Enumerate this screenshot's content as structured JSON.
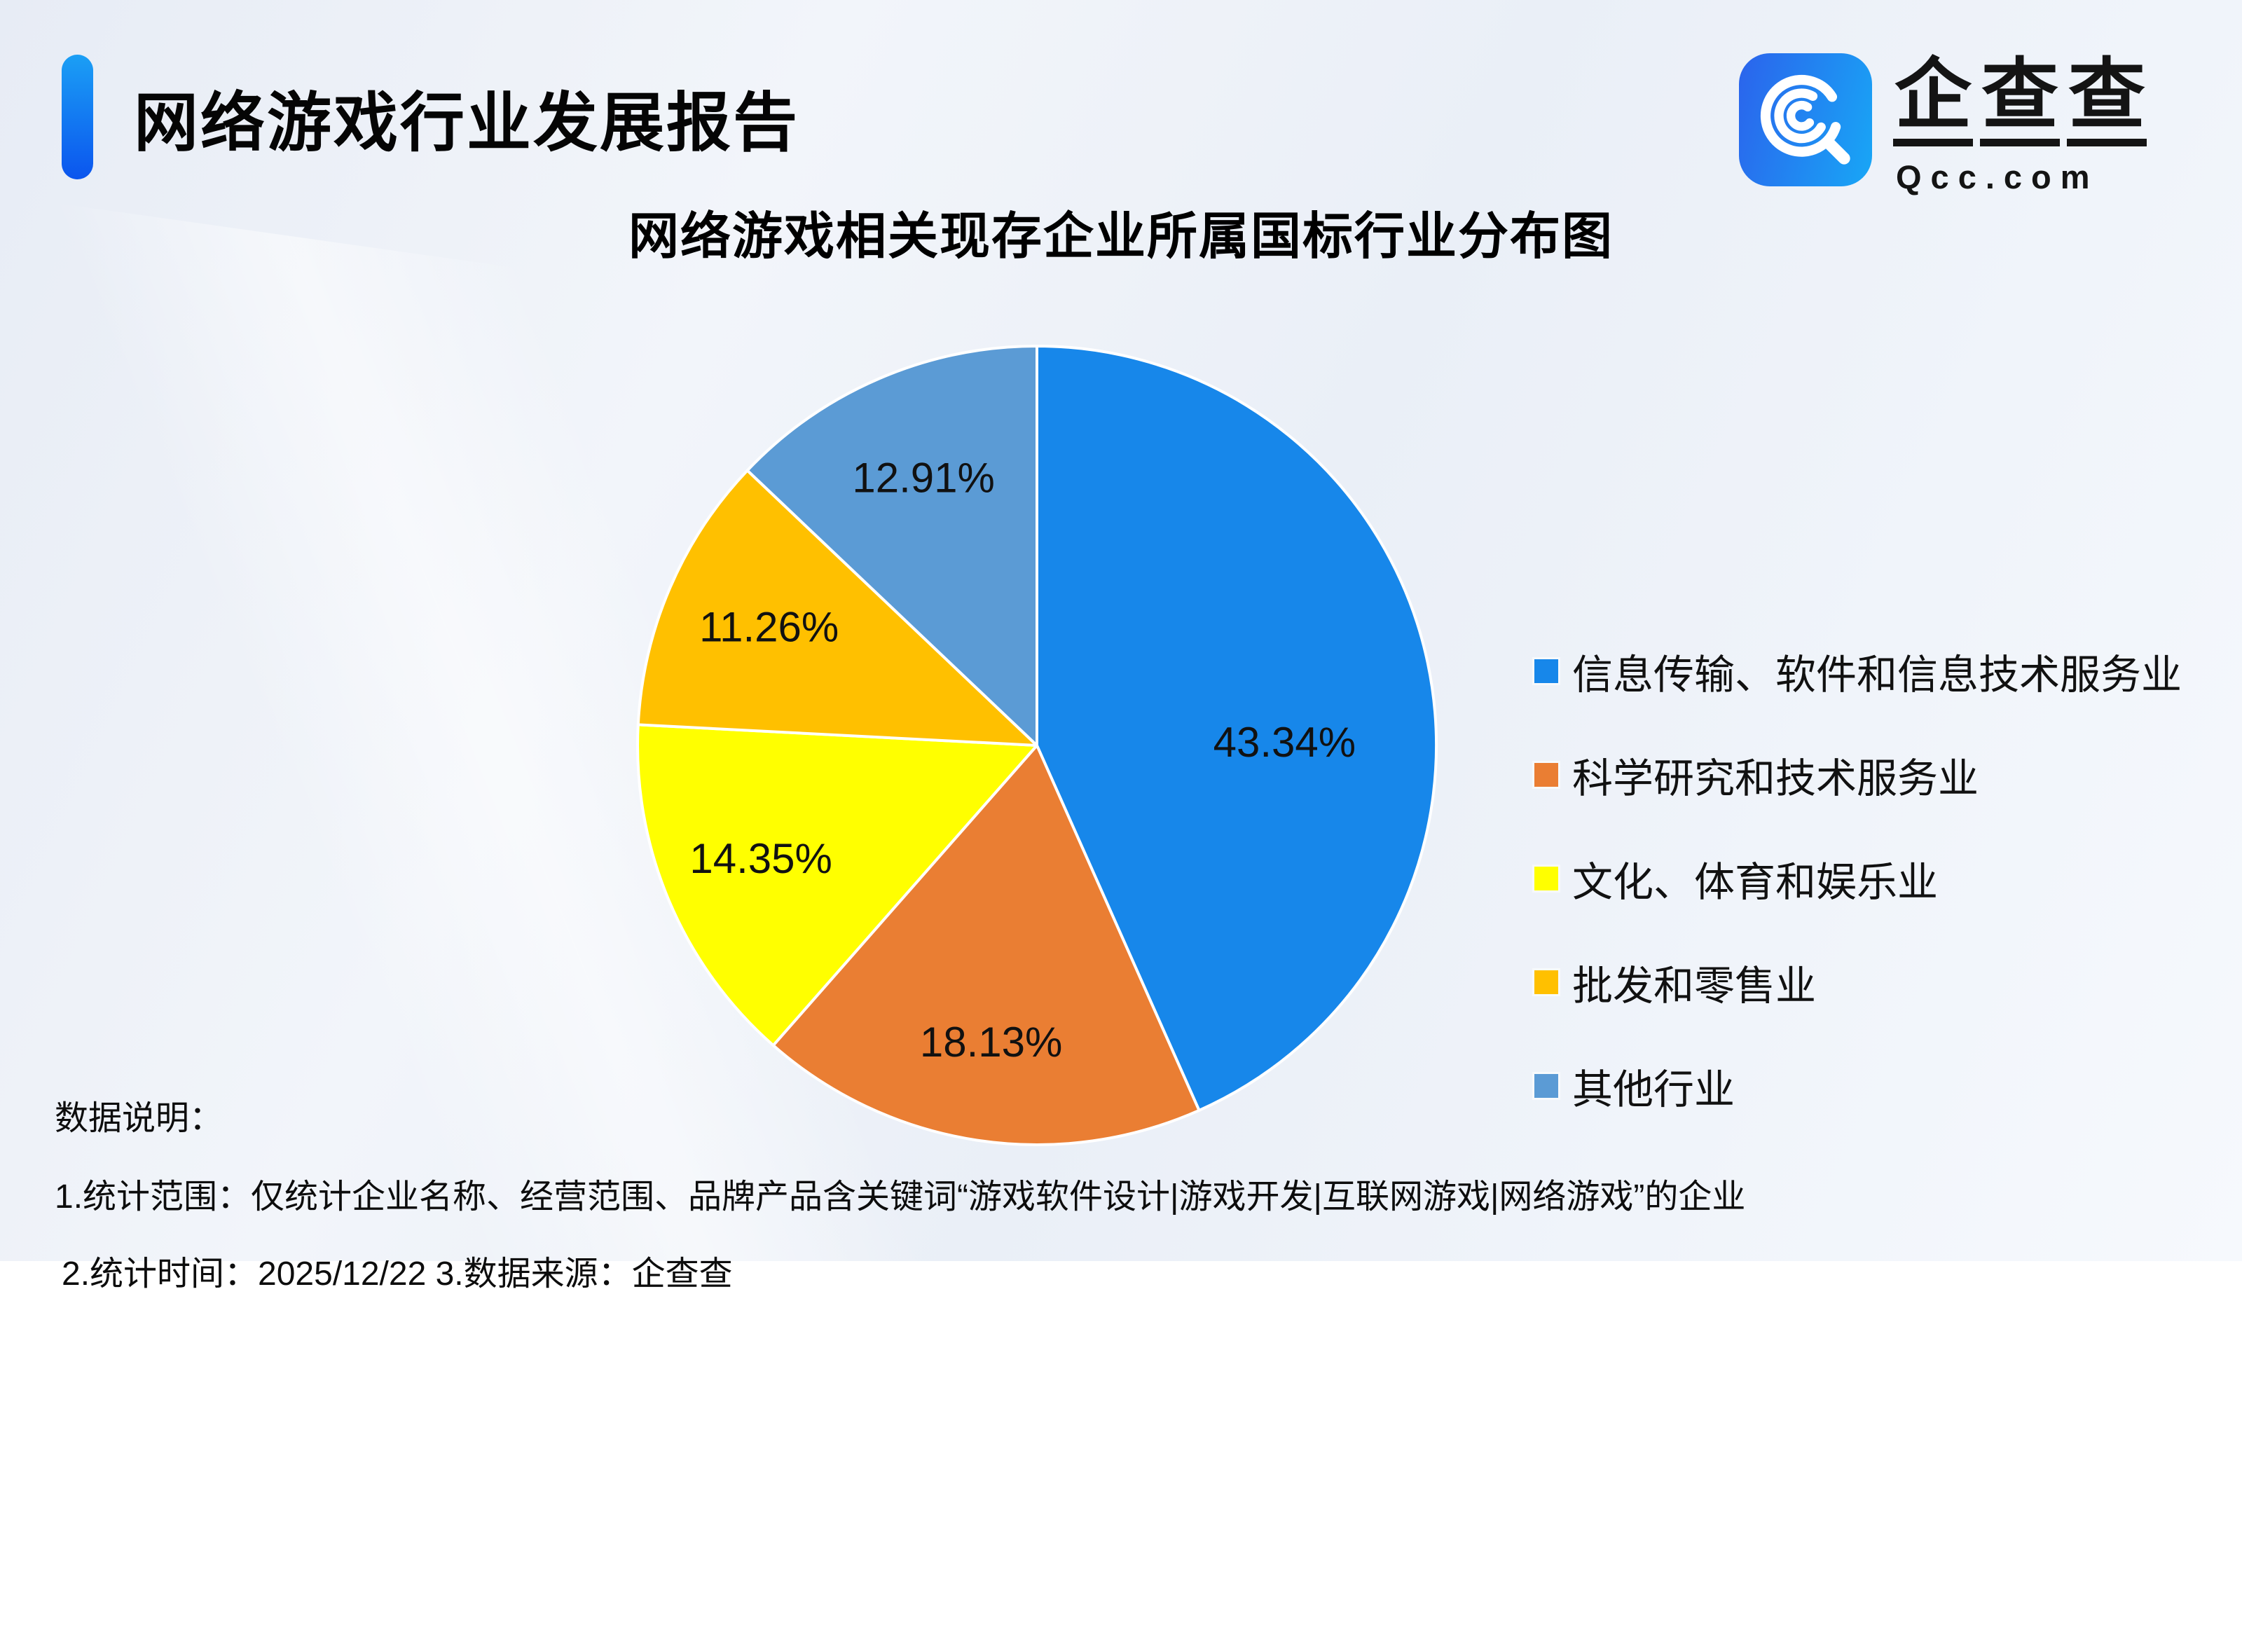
{
  "header": {
    "title": "网络游戏行业发展报告"
  },
  "logo": {
    "icon": "qcc-magnifier-icon",
    "name": "企查查",
    "domain": "Qcc.com"
  },
  "chart_data": {
    "type": "pie",
    "title": "网络游戏相关现存企业所属国标行业分布图",
    "series": [
      {
        "label": "信息传输、软件和信息技术服务业",
        "value": 43.34,
        "color": "#1787EA"
      },
      {
        "label": "科学研究和技术服务业",
        "value": 18.13,
        "color": "#EA7E33"
      },
      {
        "label": "文化、体育和娱乐业",
        "value": 14.35,
        "color": "#FFFF00"
      },
      {
        "label": "批发和零售业",
        "value": 11.26,
        "color": "#FFC000"
      },
      {
        "label": "其他行业",
        "value": 12.91,
        "color": "#5B9BD5"
      }
    ],
    "start_angle_deg": 0,
    "direction": "clockwise",
    "data_labels": [
      "43.34%",
      "18.13%",
      "14.35%",
      "11.26%",
      "12.91%"
    ],
    "legend_position": "right",
    "slice_border_color": "#FFFFFF"
  },
  "notes": {
    "heading": "数据说明：",
    "line1": "1.统计范围：仅统计企业名称、经营范围、品牌产品含关键词“游戏软件设计|游戏开发|互联网游戏|网络游戏”的企业",
    "line2": "2.统计时间：2025/12/22  3.数据来源：企查查"
  },
  "colors": {
    "accent_bar_top": "#1B9FF5",
    "accent_bar_bottom": "#0B55EE",
    "background": "#EEF2F9",
    "text": "#111111"
  }
}
